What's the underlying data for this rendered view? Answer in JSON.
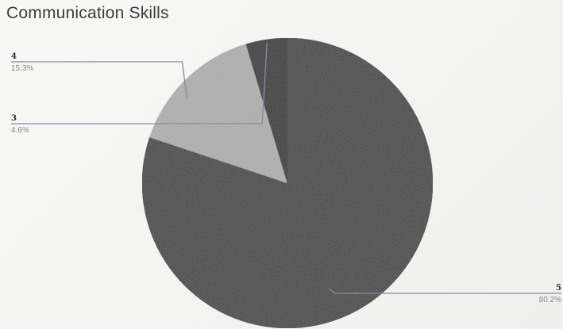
{
  "chart_data": {
    "type": "pie",
    "title": "Communication Skills",
    "categories": [
      "5",
      "4",
      "3"
    ],
    "values": [
      80.2,
      15.3,
      4.6
    ],
    "value_labels": [
      "80.2%",
      "15.3%",
      "4.6%"
    ],
    "colors": [
      "#4a4a4a",
      "#b0b0b0",
      "#3b3b3b"
    ],
    "start_angle_deg": 0,
    "direction": "clockwise"
  }
}
